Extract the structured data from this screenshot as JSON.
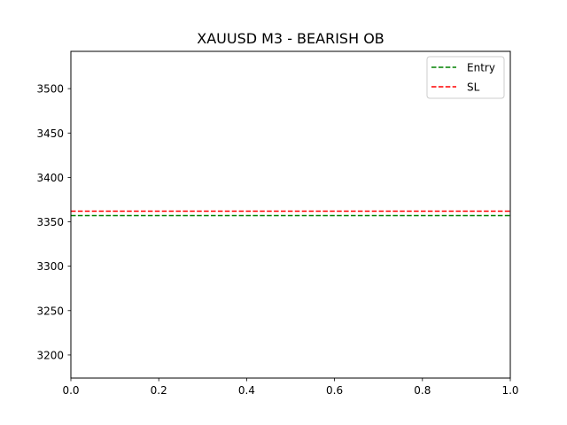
{
  "chart_data": {
    "type": "line",
    "title": "XAUUSD M3 - BEARISH OB",
    "xlabel": "",
    "ylabel": "",
    "xlim": [
      0,
      1
    ],
    "ylim": [
      3174,
      3542
    ],
    "x_ticks": [
      {
        "value": 0.0,
        "label": "0.0"
      },
      {
        "value": 0.2,
        "label": "0.2"
      },
      {
        "value": 0.4,
        "label": "0.4"
      },
      {
        "value": 0.6,
        "label": "0.6"
      },
      {
        "value": 0.8,
        "label": "0.8"
      },
      {
        "value": 1.0,
        "label": "1.0"
      }
    ],
    "y_ticks": [
      {
        "value": 3200,
        "label": "3200"
      },
      {
        "value": 3250,
        "label": "3250"
      },
      {
        "value": 3300,
        "label": "3300"
      },
      {
        "value": 3350,
        "label": "3350"
      },
      {
        "value": 3400,
        "label": "3400"
      },
      {
        "value": 3450,
        "label": "3450"
      },
      {
        "value": 3500,
        "label": "3500"
      }
    ],
    "grid": false,
    "legend_position": "top-right",
    "series": [
      {
        "name": "Entry",
        "y": 3357,
        "color": "#008000",
        "style": "dashed"
      },
      {
        "name": "SL",
        "y": 3362,
        "color": "#ff0000",
        "style": "dashed"
      }
    ]
  }
}
